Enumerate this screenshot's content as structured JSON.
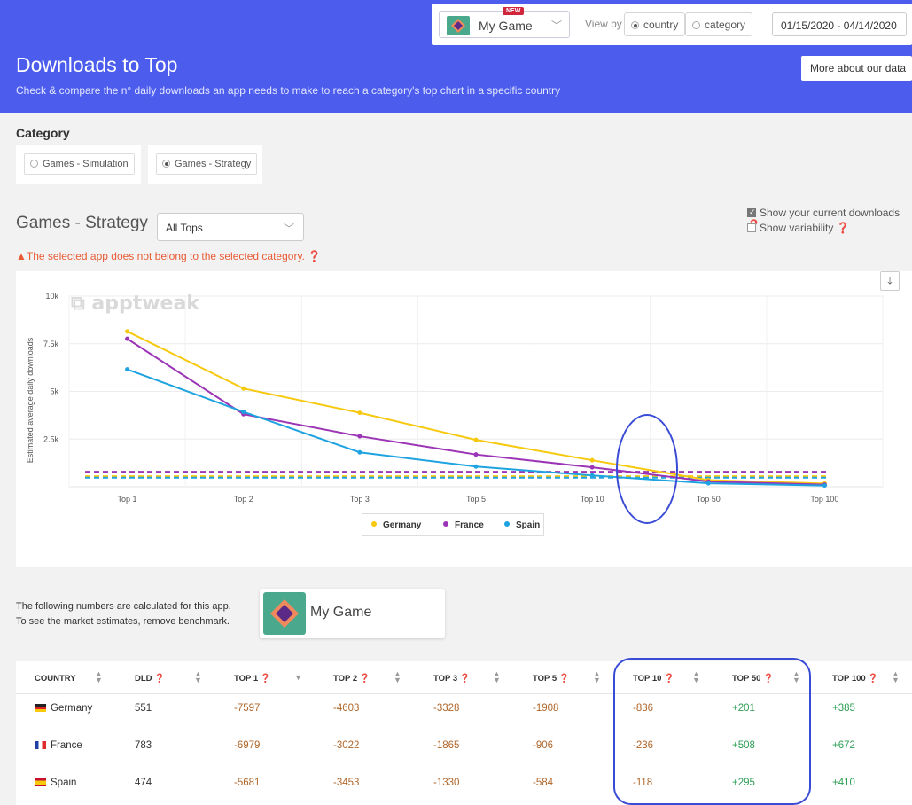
{
  "topbar": {
    "new_badge": "NEW",
    "app_name": "My Game",
    "view_by": "View by",
    "view_country": "country",
    "view_category": "category",
    "date_range": "01/15/2020 - 04/14/2020"
  },
  "header": {
    "title": "Downloads to Top",
    "subtitle": "Check & compare the n° daily downloads an app needs to make to reach a category's top chart in a specific country",
    "more_button": "More about our data"
  },
  "category": {
    "label": "Category",
    "options": [
      "Games - Simulation",
      "Games - Strategy"
    ],
    "selected": "Games - Strategy"
  },
  "section": {
    "title": "Games - Strategy",
    "tops_select": "All Tops",
    "warning": "The selected app does not belong to the selected category.",
    "show_current": "Show your current downloads",
    "show_variability": "Show variability",
    "watermark": "apptweak"
  },
  "colors": {
    "germany": "#f6c90f",
    "france": "#9b35b5",
    "spain": "#1ea3e0",
    "header": "#4c5ded",
    "highlight": "#3a4bd6"
  },
  "chart_data": {
    "type": "line",
    "categories": [
      "Top 1",
      "Top 2",
      "Top 3",
      "Top 5",
      "Top 10",
      "Top 50",
      "Top 100"
    ],
    "ylabel": "Estimated average daily downloads",
    "ylim": [
      0,
      10000
    ],
    "yticks": [
      "2.5k",
      "5k",
      "7.5k",
      "10k"
    ],
    "grid": true,
    "legend": "bottom",
    "series": [
      {
        "name": "Germany",
        "values": [
          8148,
          5154,
          3879,
          2459,
          1387,
          350,
          166
        ],
        "current": 551
      },
      {
        "name": "France",
        "values": [
          7762,
          3805,
          2648,
          1689,
          1019,
          275,
          111
        ],
        "current": 783
      },
      {
        "name": "Spain",
        "values": [
          6155,
          3927,
          1804,
          1058,
          592,
          179,
          64
        ],
        "current": 474
      }
    ]
  },
  "benchmark": {
    "note_line1": "The following numbers are calculated for this app.",
    "note_line2": "To see the market estimates, remove benchmark.",
    "app_name": "My Game"
  },
  "table": {
    "headers": [
      "COUNTRY",
      "DLD",
      "TOP 1",
      "TOP 2",
      "TOP 3",
      "TOP 5",
      "TOP 10",
      "TOP 50",
      "TOP 100"
    ],
    "rows": [
      {
        "country": "Germany",
        "dld": "551",
        "cells": [
          "-7597",
          "-4603",
          "-3328",
          "-1908",
          "-836",
          "+201",
          "+385"
        ]
      },
      {
        "country": "France",
        "dld": "783",
        "cells": [
          "-6979",
          "-3022",
          "-1865",
          "-906",
          "-236",
          "+508",
          "+672"
        ]
      },
      {
        "country": "Spain",
        "dld": "474",
        "cells": [
          "-5681",
          "-3453",
          "-1330",
          "-584",
          "-118",
          "+295",
          "+410"
        ]
      }
    ]
  }
}
